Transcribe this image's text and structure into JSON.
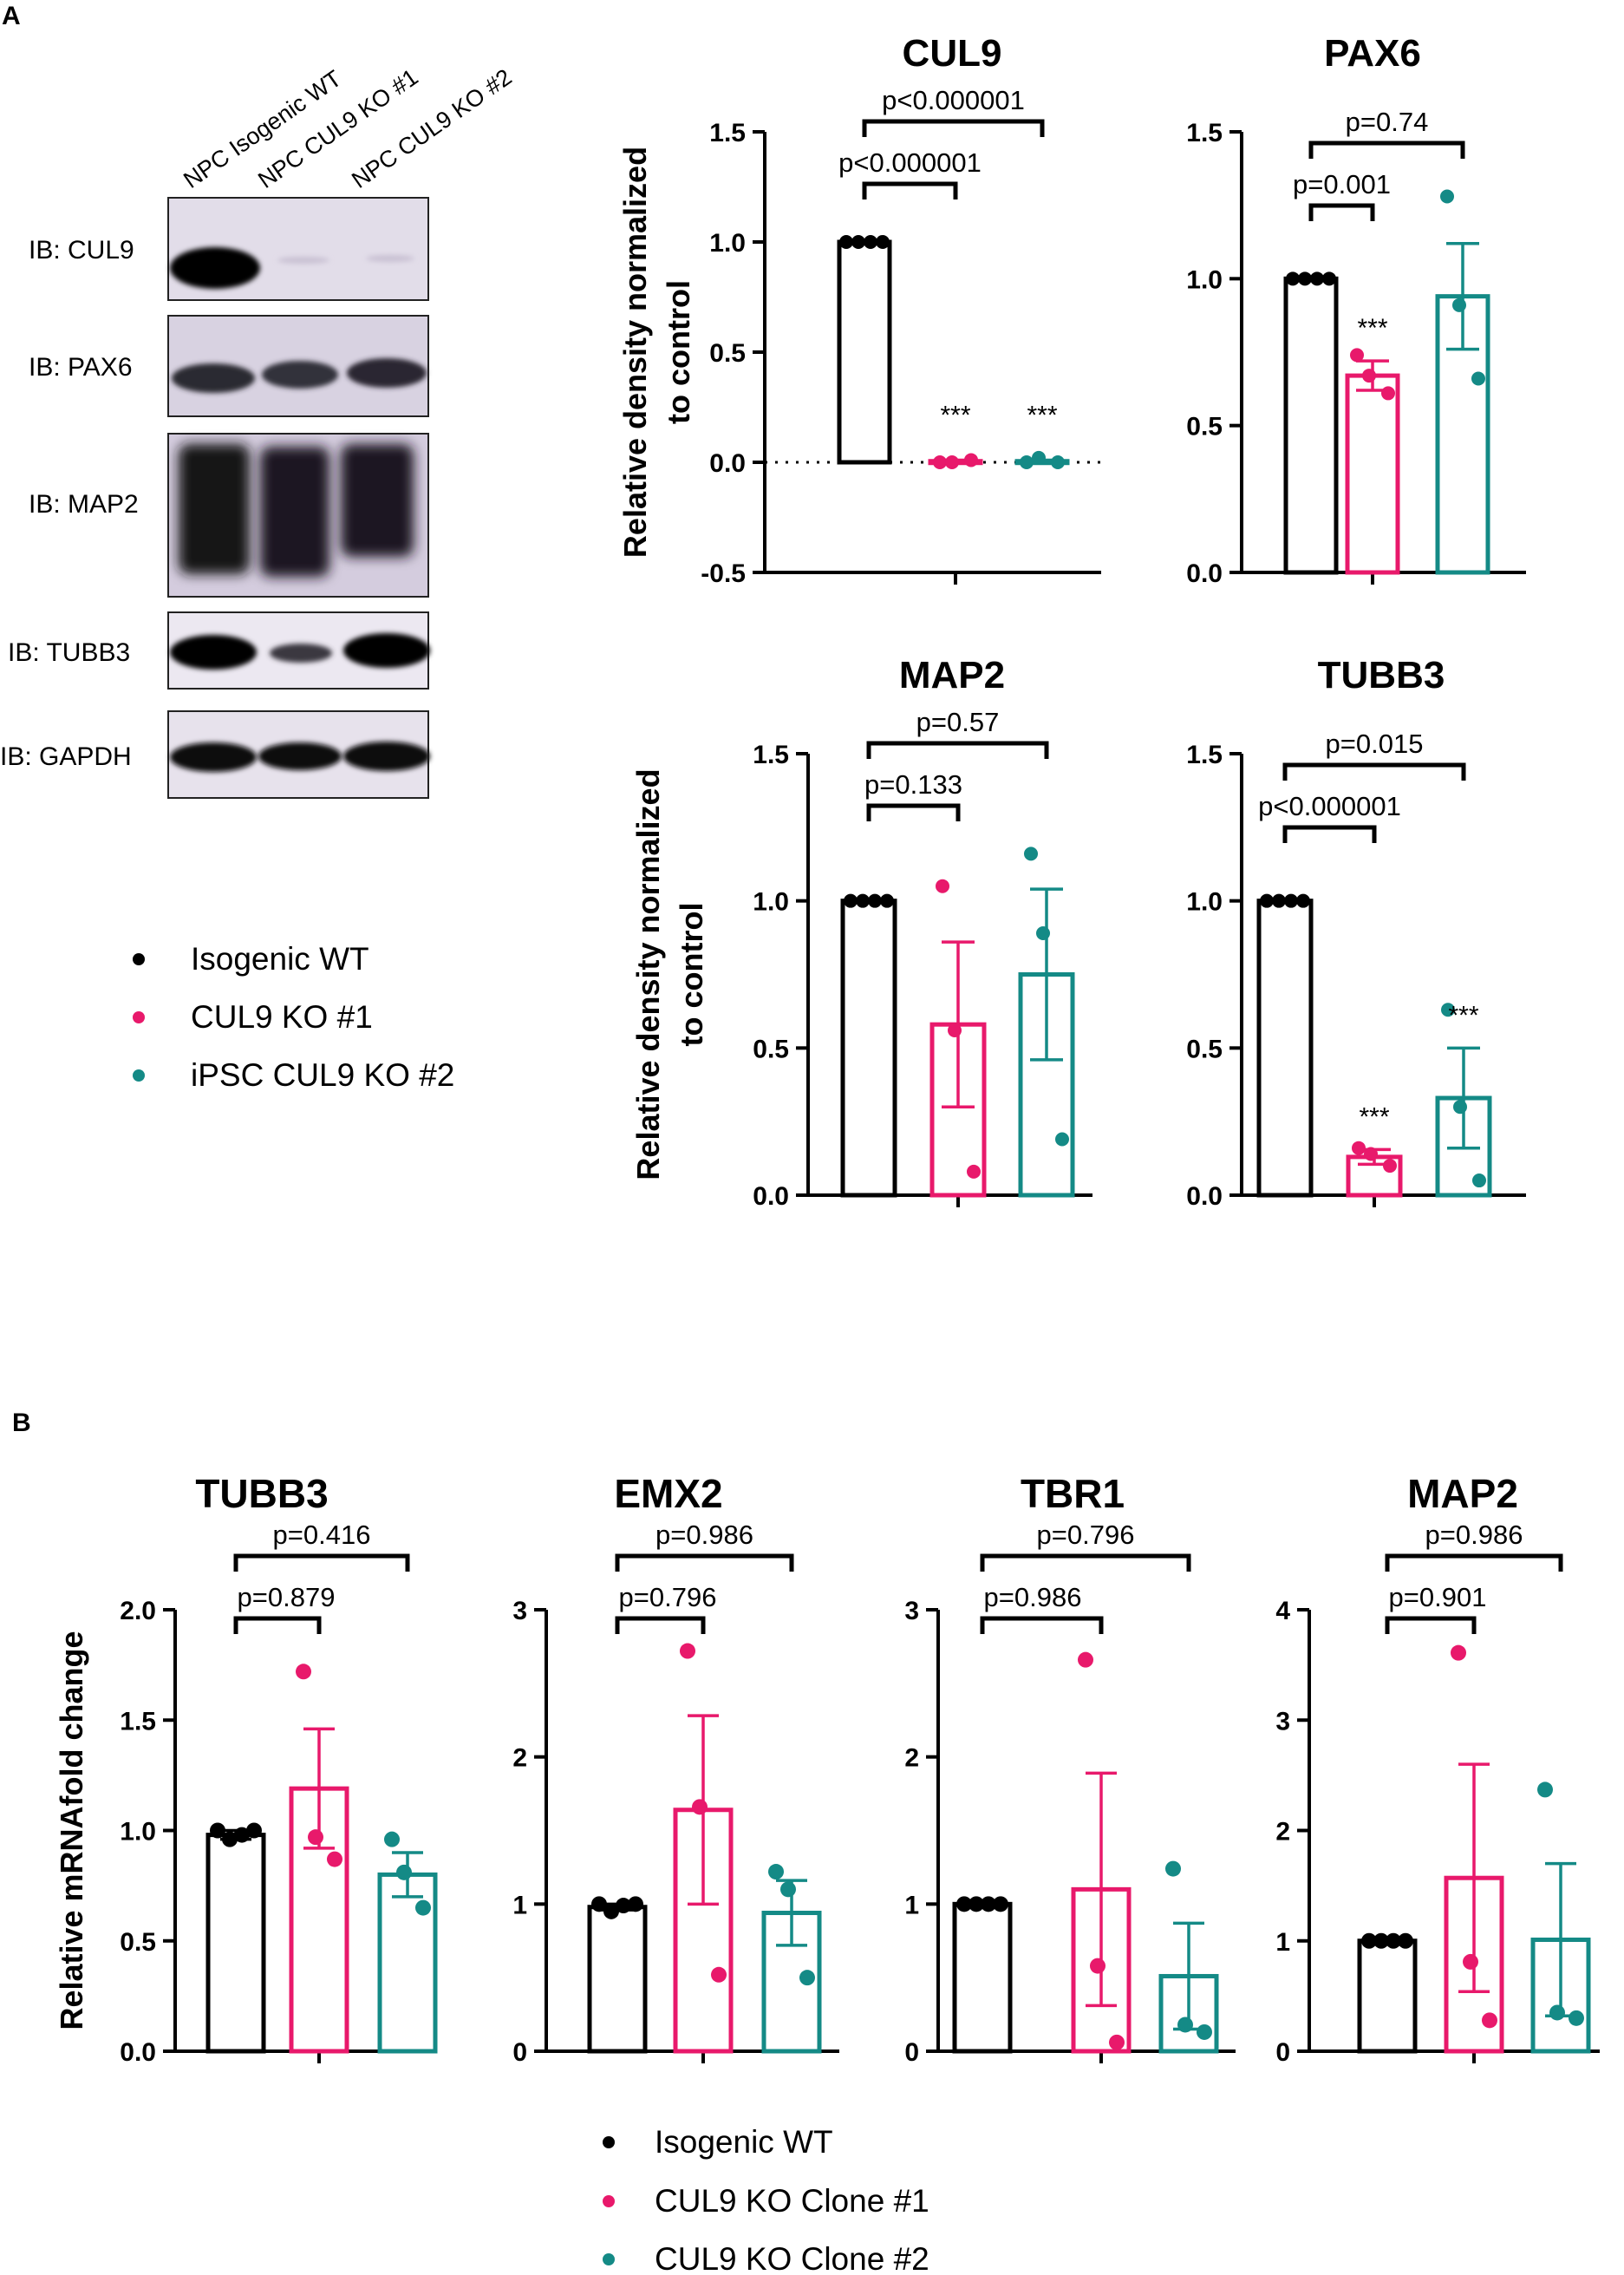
{
  "panel_labels": {
    "a": "A",
    "b": "B"
  },
  "colors": {
    "wt": "#000000",
    "ko1": "#E8196B",
    "ko2": "#148A86"
  },
  "western_blot": {
    "lanes": [
      "NPC Isogenic WT",
      "NPC CUL9 KO #1",
      "NPC CUL9 KO #2"
    ],
    "rows": [
      "IB: CUL9",
      "IB: PAX6",
      "IB: MAP2",
      "IB: TUBB3",
      "IB: GAPDH"
    ]
  },
  "legend_a": [
    "Isogenic WT",
    "CUL9 KO #1",
    "iPSC CUL9 KO #2"
  ],
  "legend_b": [
    "Isogenic WT",
    "CUL9 KO Clone #1",
    "CUL9 KO Clone #2"
  ],
  "chart_data": [
    {
      "type": "bar",
      "panel": "A",
      "title": "CUL9",
      "ylabel": [
        "Relative density normalized",
        "to control"
      ],
      "ylim": [
        -0.5,
        1.5
      ],
      "yticks": [
        "-0.5",
        "0.0",
        "0.5",
        "1.0",
        "1.5"
      ],
      "series": [
        {
          "group": "wt",
          "mean": 1.0,
          "sem": 0,
          "points": [
            1.0,
            1.0,
            1.0,
            1.0
          ],
          "star": ""
        },
        {
          "group": "ko1",
          "mean": 0.005,
          "sem": 0.005,
          "points": [
            0.0,
            0.0,
            0.01
          ],
          "star": "***"
        },
        {
          "group": "ko2",
          "mean": 0.005,
          "sem": 0.005,
          "points": [
            0.0,
            0.02,
            0.0
          ],
          "star": "***"
        }
      ],
      "comparisons": [
        {
          "from": 0,
          "to": 1,
          "label": "p<0.000001"
        },
        {
          "from": 0,
          "to": 2,
          "label": "p<0.000001"
        }
      ]
    },
    {
      "type": "bar",
      "panel": "A",
      "title": "PAX6",
      "ylim": [
        0,
        1.5
      ],
      "yticks": [
        "0.0",
        "0.5",
        "1.0",
        "1.5"
      ],
      "series": [
        {
          "group": "wt",
          "mean": 1.0,
          "sem": 0,
          "points": [
            1.0,
            1.0,
            1.0,
            1.0
          ],
          "star": ""
        },
        {
          "group": "ko1",
          "mean": 0.67,
          "sem": 0.05,
          "points": [
            0.74,
            0.67,
            0.61
          ],
          "star": "***"
        },
        {
          "group": "ko2",
          "mean": 0.94,
          "sem": 0.18,
          "points": [
            1.28,
            0.91,
            0.66
          ],
          "star": ""
        }
      ],
      "comparisons": [
        {
          "from": 0,
          "to": 1,
          "label": "p=0.001"
        },
        {
          "from": 0,
          "to": 2,
          "label": "p=0.74"
        }
      ]
    },
    {
      "type": "bar",
      "panel": "A",
      "title": "MAP2",
      "ylabel": [
        "Relative density normalized",
        "to control"
      ],
      "ylim": [
        0,
        1.5
      ],
      "yticks": [
        "0.0",
        "0.5",
        "1.0",
        "1.5"
      ],
      "series": [
        {
          "group": "wt",
          "mean": 1.0,
          "sem": 0,
          "points": [
            1.0,
            1.0,
            1.0,
            1.0
          ],
          "star": ""
        },
        {
          "group": "ko1",
          "mean": 0.58,
          "sem": 0.28,
          "points": [
            1.05,
            0.56,
            0.08
          ],
          "star": ""
        },
        {
          "group": "ko2",
          "mean": 0.75,
          "sem": 0.29,
          "points": [
            1.16,
            0.89,
            0.19
          ],
          "star": ""
        }
      ],
      "comparisons": [
        {
          "from": 0,
          "to": 1,
          "label": "p=0.133"
        },
        {
          "from": 0,
          "to": 2,
          "label": "p=0.57"
        }
      ]
    },
    {
      "type": "bar",
      "panel": "A",
      "title": "TUBB3",
      "ylim": [
        0,
        1.5
      ],
      "yticks": [
        "0.0",
        "0.5",
        "1.0",
        "1.5"
      ],
      "series": [
        {
          "group": "wt",
          "mean": 1.0,
          "sem": 0,
          "points": [
            1.0,
            1.0,
            1.0,
            1.0
          ],
          "star": ""
        },
        {
          "group": "ko1",
          "mean": 0.13,
          "sem": 0.025,
          "points": [
            0.16,
            0.14,
            0.1
          ],
          "star": "***"
        },
        {
          "group": "ko2",
          "mean": 0.33,
          "sem": 0.17,
          "points": [
            0.63,
            0.3,
            0.05
          ],
          "star": "***"
        }
      ],
      "comparisons": [
        {
          "from": 0,
          "to": 1,
          "label": "p<0.000001"
        },
        {
          "from": 0,
          "to": 2,
          "label": "p=0.015"
        }
      ]
    },
    {
      "type": "bar",
      "panel": "B",
      "title": "TUBB3",
      "ylabel": [
        "Relative mRNAfold change"
      ],
      "ylim": [
        0,
        2.0
      ],
      "yticks": [
        "0.0",
        "0.5",
        "1.0",
        "1.5",
        "2.0"
      ],
      "series": [
        {
          "group": "wt",
          "mean": 0.98,
          "sem": 0.02,
          "points": [
            1.0,
            0.96,
            0.98,
            1.0
          ],
          "star": ""
        },
        {
          "group": "ko1",
          "mean": 1.19,
          "sem": 0.27,
          "points": [
            1.72,
            0.97,
            0.87
          ],
          "star": ""
        },
        {
          "group": "ko2",
          "mean": 0.8,
          "sem": 0.1,
          "points": [
            0.96,
            0.81,
            0.65
          ],
          "star": ""
        }
      ],
      "comparisons": [
        {
          "from": 0,
          "to": 1,
          "label": "p=0.879"
        },
        {
          "from": 0,
          "to": 2,
          "label": "p=0.416"
        }
      ]
    },
    {
      "type": "bar",
      "panel": "B",
      "title": "EMX2",
      "ylim": [
        0,
        3
      ],
      "yticks": [
        "0",
        "1",
        "2",
        "3"
      ],
      "series": [
        {
          "group": "wt",
          "mean": 0.98,
          "sem": 0.02,
          "points": [
            1.0,
            0.95,
            0.99,
            1.0
          ],
          "star": ""
        },
        {
          "group": "ko1",
          "mean": 1.64,
          "sem": 0.64,
          "points": [
            2.72,
            1.66,
            0.52
          ],
          "star": ""
        },
        {
          "group": "ko2",
          "mean": 0.94,
          "sem": 0.22,
          "points": [
            1.22,
            1.1,
            0.5
          ],
          "star": ""
        }
      ],
      "comparisons": [
        {
          "from": 0,
          "to": 1,
          "label": "p=0.796"
        },
        {
          "from": 0,
          "to": 2,
          "label": "p=0.986"
        }
      ]
    },
    {
      "type": "bar",
      "panel": "B",
      "title": "TBR1",
      "ylim": [
        0,
        3
      ],
      "yticks": [
        "0",
        "1",
        "2",
        "3"
      ],
      "series": [
        {
          "group": "wt",
          "mean": 1.0,
          "sem": 0,
          "points": [
            1.0,
            1.0,
            1.0,
            1.0
          ],
          "star": ""
        },
        {
          "group": "ko1",
          "mean": 1.1,
          "sem": 0.79,
          "points": [
            2.66,
            0.58,
            0.06
          ],
          "star": ""
        },
        {
          "group": "ko2",
          "mean": 0.51,
          "sem": 0.36,
          "points": [
            1.24,
            0.18,
            0.13
          ],
          "star": ""
        }
      ],
      "comparisons": [
        {
          "from": 0,
          "to": 1,
          "label": "p=0.986"
        },
        {
          "from": 0,
          "to": 2,
          "label": "p=0.796"
        }
      ]
    },
    {
      "type": "bar",
      "panel": "B",
      "title": "MAP2",
      "ylim": [
        0,
        4
      ],
      "yticks": [
        "0",
        "1",
        "2",
        "3",
        "4"
      ],
      "series": [
        {
          "group": "wt",
          "mean": 1.0,
          "sem": 0,
          "points": [
            1.0,
            1.0,
            1.0,
            1.0
          ],
          "star": ""
        },
        {
          "group": "ko1",
          "mean": 1.57,
          "sem": 1.03,
          "points": [
            3.61,
            0.81,
            0.28
          ],
          "star": ""
        },
        {
          "group": "ko2",
          "mean": 1.01,
          "sem": 0.69,
          "points": [
            2.37,
            0.35,
            0.3
          ],
          "star": ""
        }
      ],
      "comparisons": [
        {
          "from": 0,
          "to": 1,
          "label": "p=0.901"
        },
        {
          "from": 0,
          "to": 2,
          "label": "p=0.986"
        }
      ]
    }
  ]
}
